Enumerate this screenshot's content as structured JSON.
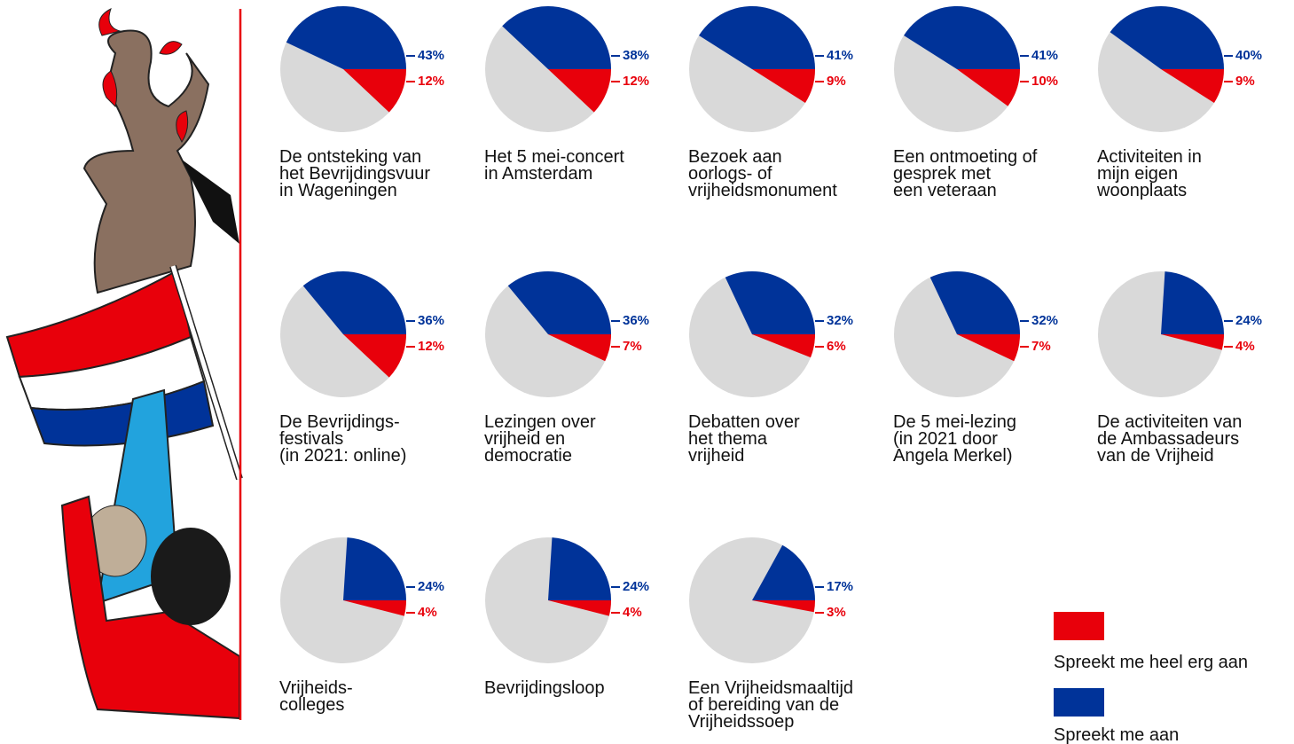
{
  "chart_data": {
    "type": "pie",
    "categories": [
      "De ontsteking van\nhet Bevrijdingsvuur\nin Wageningen",
      "Het 5 mei-concert\nin Amsterdam",
      "Bezoek aan\noorlogs- of\nvrijheidsmonument",
      "Een ontmoeting of\ngesprek met\neen veteraan",
      "Activiteiten in\nmijn eigen\nwoonplaats",
      "De Bevrijdings-\nfestivals\n(in 2021: online)",
      "Lezingen over\nvrijheid en\ndemocratie",
      "Debatten over\nhet thema\nvrijheid",
      "De 5 mei-lezing\n(in 2021 door\nAngela Merkel)",
      "De activiteiten van\nde Ambassadeurs\nvan de Vrijheid",
      "Vrijheids-\ncolleges",
      "Bevrijdingsloop",
      "Een Vrijheidsmaaltijd\nof bereiding van de\nVrijheidssoep"
    ],
    "series": [
      {
        "name": "Spreekt me heel erg aan",
        "color": "#e8000b",
        "values": [
          12,
          12,
          9,
          10,
          9,
          12,
          7,
          6,
          7,
          4,
          4,
          4,
          3
        ],
        "value_labels": [
          "12%",
          "12%",
          "9%",
          "10%",
          "9%",
          "12%",
          "7%",
          "6%",
          "7%",
          "4%",
          "4%",
          "4%",
          "3%"
        ]
      },
      {
        "name": "Spreekt me aan",
        "color": "#003399",
        "values": [
          43,
          38,
          41,
          41,
          40,
          36,
          36,
          32,
          32,
          24,
          24,
          24,
          17
        ],
        "value_labels": [
          "43%",
          "38%",
          "41%",
          "41%",
          "40%",
          "36%",
          "36%",
          "32%",
          "32%",
          "24%",
          "24%",
          "24%",
          "17%"
        ]
      }
    ],
    "rest_color": "#d9d9d9"
  }
}
